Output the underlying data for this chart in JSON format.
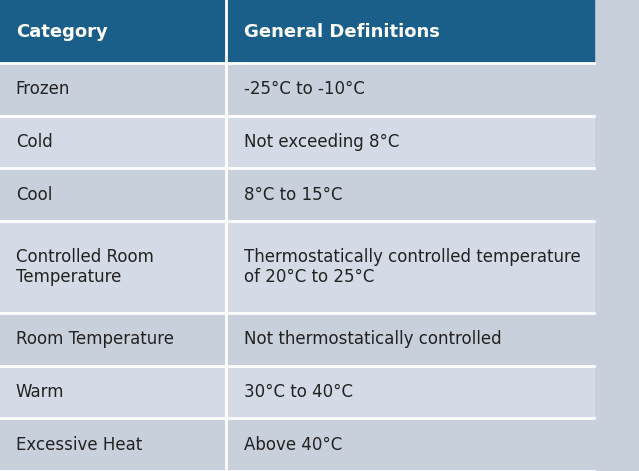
{
  "header": [
    "Category",
    "General Definitions"
  ],
  "rows": [
    [
      "Frozen",
      "-25°C to -10°C"
    ],
    [
      "Cold",
      "Not exceeding 8°C"
    ],
    [
      "Cool",
      "8°C to 15°C"
    ],
    [
      "Controlled Room\nTemperature",
      "Thermostatically controlled temperature\nof 20°C to 25°C"
    ],
    [
      "Room Temperature",
      "Not thermostatically controlled"
    ],
    [
      "Warm",
      "30°C to 40°C"
    ],
    [
      "Excessive Heat",
      "Above 40°C"
    ]
  ],
  "header_bg": "#1a5f8a",
  "header_text_color": "#ffffff",
  "row_bg_odd": "#c8d0dc",
  "row_bg_even": "#d4dbe6",
  "row_text_color": "#222222",
  "border_color": "#ffffff",
  "col_split": 0.38,
  "header_fontsize": 13,
  "row_fontsize": 12,
  "fig_bg": "#c8d0dc"
}
